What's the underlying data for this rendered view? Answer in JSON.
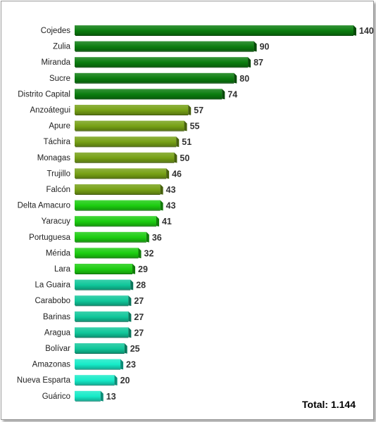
{
  "chart_data": {
    "type": "bar",
    "orientation": "horizontal",
    "categories": [
      "Cojedes",
      "Zulia",
      "Miranda",
      "Sucre",
      "Distrito Capital",
      "Anzoátegui",
      "Apure",
      "Táchira",
      "Monagas",
      "Trujillo",
      "Falcón",
      "Delta Amacuro",
      "Yaracuy",
      "Portuguesa",
      "Mérida",
      "Lara",
      "La Guaira",
      "Carabobo",
      "Barinas",
      "Aragua",
      "Bolívar",
      "Amazonas",
      "Nueva Esparta",
      "Guárico"
    ],
    "values": [
      140,
      90,
      87,
      80,
      74,
      57,
      55,
      51,
      50,
      46,
      43,
      43,
      41,
      36,
      32,
      29,
      28,
      27,
      27,
      27,
      25,
      23,
      20,
      13
    ],
    "bar_colors": [
      "#0b7d0f",
      "#0b7d0f",
      "#0b7d0f",
      "#0b7d0f",
      "#0b7d0f",
      "#77a116",
      "#77a116",
      "#77a116",
      "#77a116",
      "#77a116",
      "#77a116",
      "#1ccd10",
      "#1ccd10",
      "#1ccd10",
      "#1ccd10",
      "#1ccd10",
      "#10c79a",
      "#10c79a",
      "#10c79a",
      "#10c79a",
      "#10c79a",
      "#16ebc8",
      "#16ebc8",
      "#16ebc8"
    ],
    "xlim": [
      0,
      140
    ],
    "grid": false,
    "legend": "none",
    "total_label": "Total: 1.144"
  }
}
